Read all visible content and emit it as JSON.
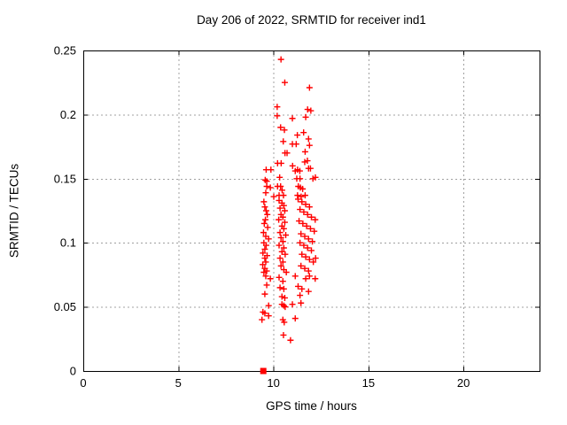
{
  "chart_data": {
    "type": "scatter",
    "title": "Day 206 of 2022, SRMTID for receiver ind1",
    "xlabel": "GPS time / hours",
    "ylabel": "SRMTID / TECUs",
    "xlim": [
      0,
      24
    ],
    "ylim": [
      0,
      0.25
    ],
    "x_ticks": {
      "values": [
        0,
        5,
        10,
        15,
        20
      ],
      "labels": [
        "0",
        "5",
        "10",
        "15",
        "20"
      ]
    },
    "y_ticks": {
      "values": [
        0,
        0.05,
        0.1,
        0.15,
        0.2,
        0.25
      ],
      "labels": [
        "0",
        "0.05",
        "0.1",
        "0.15",
        "0.2",
        "0.25"
      ]
    },
    "grid": true,
    "legend_position": "none",
    "colors": {
      "marker": "#ff0000",
      "grid": "#a0a0a0",
      "axis": "#000000",
      "background": "#ffffff",
      "text": "#000000"
    },
    "series": [
      {
        "name": "SRMTID",
        "marker": "plus",
        "color": "#ff0000",
        "points": [
          [
            10.4,
            0.243
          ],
          [
            10.6,
            0.225
          ],
          [
            11.9,
            0.221
          ],
          [
            10.2,
            0.206
          ],
          [
            11.8,
            0.204
          ],
          [
            11.97,
            0.203
          ],
          [
            10.2,
            0.199
          ],
          [
            11.0,
            0.197
          ],
          [
            11.7,
            0.198
          ],
          [
            10.38,
            0.19
          ],
          [
            10.58,
            0.188
          ],
          [
            11.26,
            0.184
          ],
          [
            11.59,
            0.186
          ],
          [
            10.52,
            0.179
          ],
          [
            11.0,
            0.177
          ],
          [
            11.2,
            0.177
          ],
          [
            11.85,
            0.181
          ],
          [
            11.9,
            0.176
          ],
          [
            10.61,
            0.17
          ],
          [
            10.72,
            0.17
          ],
          [
            11.67,
            0.171
          ],
          [
            11.79,
            0.164
          ],
          [
            11.65,
            0.163
          ],
          [
            10.22,
            0.162
          ],
          [
            10.41,
            0.162
          ],
          [
            11.01,
            0.16
          ],
          [
            11.27,
            0.157
          ],
          [
            11.39,
            0.156
          ],
          [
            11.15,
            0.156
          ],
          [
            11.85,
            0.158
          ],
          [
            11.95,
            0.158
          ],
          [
            9.62,
            0.157
          ],
          [
            9.87,
            0.157
          ],
          [
            10.33,
            0.151
          ],
          [
            9.57,
            0.149
          ],
          [
            9.65,
            0.148
          ],
          [
            11.23,
            0.15
          ],
          [
            11.4,
            0.15
          ],
          [
            12.08,
            0.15
          ],
          [
            12.21,
            0.151
          ],
          [
            9.65,
            0.144
          ],
          [
            9.84,
            0.143
          ],
          [
            10.22,
            0.144
          ],
          [
            10.38,
            0.144
          ],
          [
            10.46,
            0.141
          ],
          [
            11.31,
            0.144
          ],
          [
            11.42,
            0.143
          ],
          [
            11.54,
            0.142
          ],
          [
            9.6,
            0.139
          ],
          [
            10.02,
            0.136
          ],
          [
            10.3,
            0.137
          ],
          [
            10.53,
            0.137
          ],
          [
            11.27,
            0.137
          ],
          [
            11.46,
            0.136
          ],
          [
            11.67,
            0.137
          ],
          [
            9.5,
            0.132
          ],
          [
            9.55,
            0.128
          ],
          [
            9.62,
            0.125
          ],
          [
            9.68,
            0.122
          ],
          [
            9.58,
            0.118
          ],
          [
            9.52,
            0.115
          ],
          [
            9.7,
            0.112
          ],
          [
            9.48,
            0.108
          ],
          [
            9.6,
            0.105
          ],
          [
            9.75,
            0.103
          ],
          [
            9.5,
            0.1
          ],
          [
            9.62,
            0.098
          ],
          [
            9.55,
            0.095
          ],
          [
            9.45,
            0.092
          ],
          [
            9.67,
            0.09
          ],
          [
            9.55,
            0.088
          ],
          [
            9.6,
            0.085
          ],
          [
            9.44,
            0.083
          ],
          [
            9.55,
            0.08
          ],
          [
            9.65,
            0.078
          ],
          [
            9.5,
            0.077
          ],
          [
            10.3,
            0.133
          ],
          [
            10.45,
            0.131
          ],
          [
            10.55,
            0.129
          ],
          [
            10.35,
            0.127
          ],
          [
            10.6,
            0.125
          ],
          [
            10.4,
            0.122
          ],
          [
            10.5,
            0.12
          ],
          [
            10.28,
            0.118
          ],
          [
            10.6,
            0.116
          ],
          [
            10.45,
            0.113
          ],
          [
            10.55,
            0.111
          ],
          [
            10.35,
            0.108
          ],
          [
            10.65,
            0.106
          ],
          [
            10.4,
            0.104
          ],
          [
            10.5,
            0.101
          ],
          [
            10.3,
            0.098
          ],
          [
            10.55,
            0.096
          ],
          [
            10.45,
            0.093
          ],
          [
            10.62,
            0.091
          ],
          [
            10.35,
            0.088
          ],
          [
            10.5,
            0.085
          ],
          [
            10.4,
            0.082
          ],
          [
            10.55,
            0.079
          ],
          [
            10.68,
            0.077
          ],
          [
            11.3,
            0.134
          ],
          [
            11.5,
            0.132
          ],
          [
            11.7,
            0.13
          ],
          [
            11.9,
            0.128
          ],
          [
            11.4,
            0.126
          ],
          [
            11.6,
            0.124
          ],
          [
            11.8,
            0.122
          ],
          [
            12.0,
            0.12
          ],
          [
            12.2,
            0.118
          ],
          [
            11.35,
            0.117
          ],
          [
            11.55,
            0.115
          ],
          [
            11.75,
            0.113
          ],
          [
            11.95,
            0.111
          ],
          [
            12.15,
            0.109
          ],
          [
            11.45,
            0.107
          ],
          [
            11.65,
            0.105
          ],
          [
            11.85,
            0.103
          ],
          [
            12.05,
            0.101
          ],
          [
            11.4,
            0.1
          ],
          [
            11.6,
            0.098
          ],
          [
            11.8,
            0.096
          ],
          [
            12.0,
            0.094
          ],
          [
            11.5,
            0.091
          ],
          [
            11.7,
            0.089
          ],
          [
            11.9,
            0.087
          ],
          [
            12.1,
            0.085
          ],
          [
            11.45,
            0.082
          ],
          [
            11.65,
            0.08
          ],
          [
            11.85,
            0.078
          ],
          [
            12.22,
            0.088
          ],
          [
            9.6,
            0.074
          ],
          [
            9.84,
            0.072
          ],
          [
            10.3,
            0.073
          ],
          [
            10.5,
            0.07
          ],
          [
            11.15,
            0.074
          ],
          [
            11.7,
            0.072
          ],
          [
            11.9,
            0.074
          ],
          [
            12.2,
            0.072
          ],
          [
            9.65,
            0.067
          ],
          [
            10.35,
            0.065
          ],
          [
            10.55,
            0.064
          ],
          [
            11.3,
            0.066
          ],
          [
            11.5,
            0.064
          ],
          [
            11.85,
            0.062
          ],
          [
            9.55,
            0.06
          ],
          [
            10.45,
            0.058
          ],
          [
            10.6,
            0.057
          ],
          [
            11.4,
            0.059
          ],
          [
            9.75,
            0.051
          ],
          [
            10.45,
            0.052
          ],
          [
            10.55,
            0.051
          ],
          [
            10.62,
            0.05
          ],
          [
            11.0,
            0.052
          ],
          [
            11.45,
            0.053
          ],
          [
            9.45,
            0.046
          ],
          [
            9.55,
            0.045
          ],
          [
            9.75,
            0.043
          ],
          [
            9.4,
            0.04
          ],
          [
            10.5,
            0.04
          ],
          [
            10.57,
            0.038
          ],
          [
            11.15,
            0.041
          ],
          [
            10.53,
            0.028
          ],
          [
            10.9,
            0.024
          ]
        ]
      },
      {
        "name": "zero-marker",
        "marker": "filled-square",
        "color": "#ff0000",
        "points": [
          [
            9.47,
            0.0
          ]
        ]
      }
    ]
  }
}
